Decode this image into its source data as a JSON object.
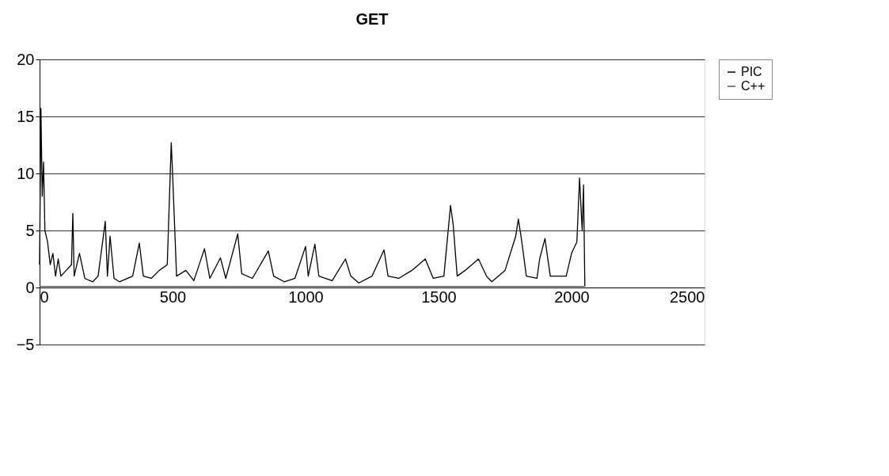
{
  "chart_data": {
    "type": "line",
    "title": "GET",
    "xlim": [
      0,
      2500
    ],
    "xticks": [
      0,
      500,
      1000,
      1500,
      2000,
      2500
    ],
    "ylim": [
      -5,
      20
    ],
    "yticks": [
      -5,
      0,
      5,
      10,
      15,
      20
    ],
    "grid": "y",
    "legend": "right",
    "line_style": "solid",
    "marker": "none",
    "series": [
      {
        "name": "PIC",
        "color": "#000000",
        "x": [
          0,
          5,
          10,
          15,
          20,
          30,
          40,
          50,
          60,
          70,
          80,
          100,
          120,
          125,
          130,
          150,
          170,
          200,
          220,
          247,
          255,
          265,
          280,
          300,
          350,
          375,
          390,
          420,
          450,
          480,
          495,
          500,
          505,
          515,
          550,
          580,
          620,
          640,
          680,
          700,
          745,
          760,
          800,
          860,
          880,
          920,
          960,
          1000,
          1010,
          1035,
          1050,
          1100,
          1150,
          1170,
          1200,
          1250,
          1295,
          1310,
          1350,
          1400,
          1450,
          1480,
          1520,
          1545,
          1555,
          1570,
          1600,
          1650,
          1680,
          1700,
          1750,
          1790,
          1800,
          1810,
          1830,
          1870,
          1880,
          1900,
          1920,
          1980,
          2000,
          2020,
          2030,
          2040,
          2045,
          2050
        ],
        "values": [
          2,
          15.7,
          8,
          11,
          5,
          4,
          2,
          3,
          1,
          2.5,
          1,
          1.5,
          2,
          6.5,
          1,
          3,
          0.8,
          0.5,
          1,
          5.8,
          1,
          4.5,
          0.8,
          0.5,
          1,
          3.9,
          1,
          0.8,
          1.5,
          2,
          12.7,
          10,
          7,
          1,
          1.5,
          0.6,
          3.4,
          0.8,
          2.6,
          0.8,
          4.7,
          1.2,
          0.8,
          3.2,
          1,
          0.5,
          0.8,
          3.6,
          1,
          3.8,
          1,
          0.6,
          2.5,
          1,
          0.4,
          1,
          3.3,
          1,
          0.8,
          1.5,
          2.5,
          0.8,
          1,
          7.2,
          5.5,
          1,
          1.5,
          2.5,
          1,
          0.5,
          1.5,
          4.5,
          6,
          4.5,
          1,
          0.8,
          2.5,
          4.3,
          1,
          1,
          3,
          4,
          9.6,
          5,
          9,
          0.1
        ]
      },
      {
        "name": "C++",
        "color": "#555555",
        "x": [
          0,
          2050
        ],
        "values": [
          0.1,
          0.1
        ]
      }
    ]
  }
}
